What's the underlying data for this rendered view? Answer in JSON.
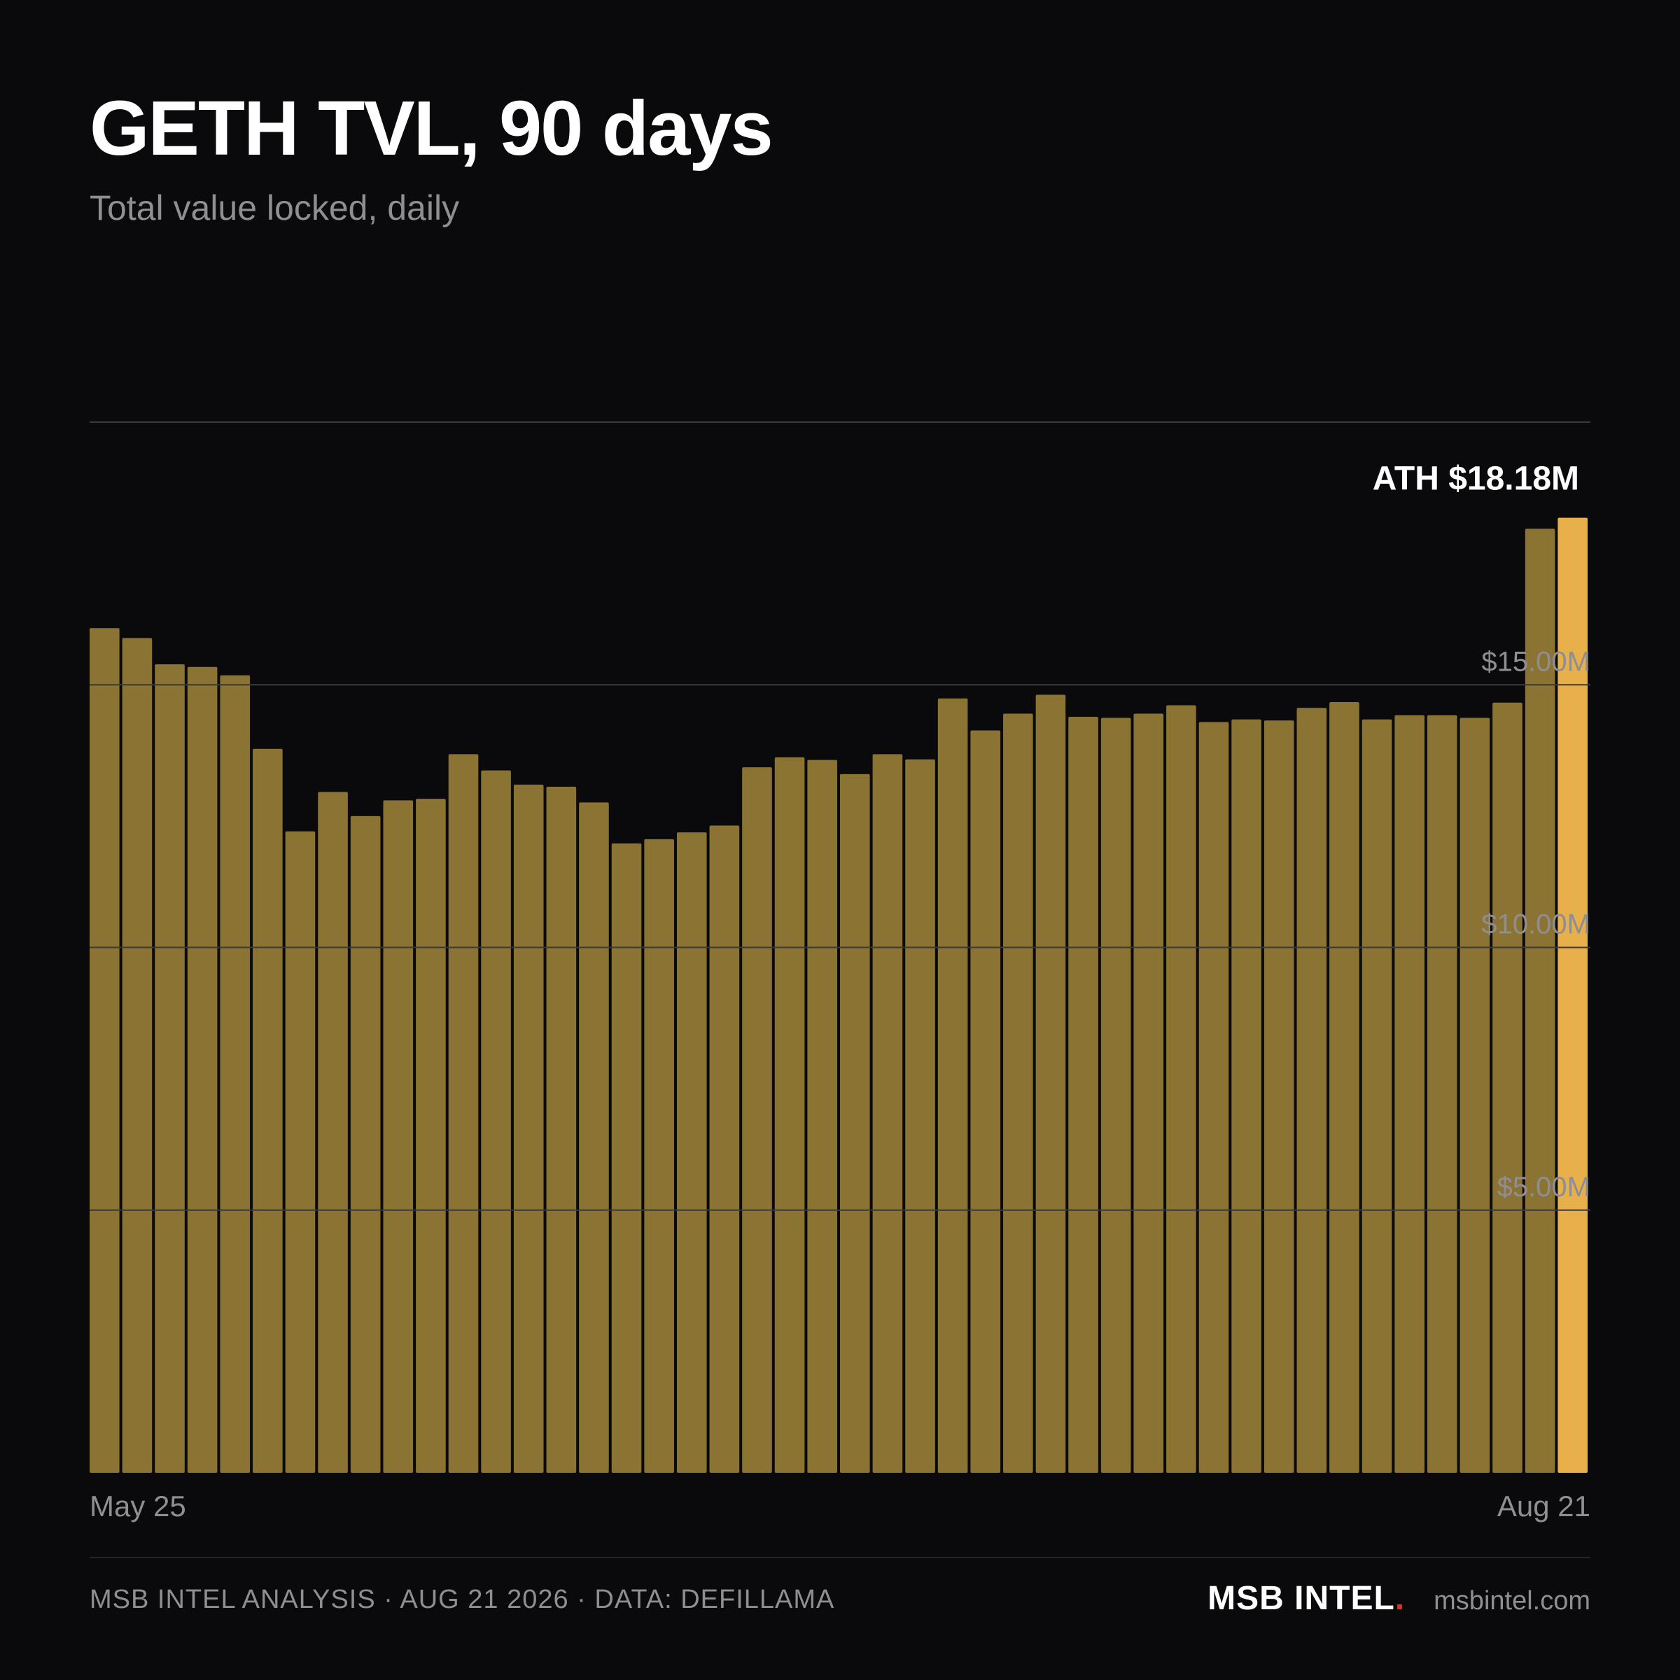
{
  "header": {
    "title": "GETH TVL, 90 days",
    "subtitle": "Total value locked, daily"
  },
  "chart_data": {
    "type": "bar",
    "unit": "$M",
    "ylim": [
      0,
      20
    ],
    "yticks": [
      {
        "value": 5,
        "label": "$5.00M"
      },
      {
        "value": 10,
        "label": "$10.00M"
      },
      {
        "value": 15,
        "label": "$15.00M"
      },
      {
        "value": 20,
        "label": ""
      }
    ],
    "x_first_label": "May 25",
    "x_last_label": "Aug 21",
    "values": [
      16.08,
      15.89,
      15.39,
      15.34,
      15.18,
      13.78,
      12.21,
      12.96,
      12.5,
      12.8,
      12.83,
      13.68,
      13.37,
      13.1,
      13.06,
      12.76,
      11.98,
      12.06,
      12.19,
      12.32,
      13.43,
      13.62,
      13.57,
      13.3,
      13.68,
      13.58,
      14.74,
      14.13,
      14.45,
      14.81,
      14.39,
      14.37,
      14.45,
      14.61,
      14.29,
      14.34,
      14.32,
      14.56,
      14.67,
      14.34,
      14.42,
      14.42,
      14.37,
      14.66,
      17.97,
      18.18
    ],
    "highlight_index": 45,
    "annotation": "ATH $18.18M",
    "grid": true,
    "colors": {
      "bar": "#8b7333",
      "highlight": "#e8b04a",
      "grid": "#3a3a3e",
      "tick_label": "#8e8e93",
      "annotation": "#ffffff"
    }
  },
  "footer": {
    "left_text": "MSB INTEL ANALYSIS · AUG 21 2026 · DATA: DEFILLAMA",
    "brand": "MSB INTEL",
    "brand_dot": ".",
    "brand_dot_color": "#c0392b",
    "site": "msbintel.com"
  }
}
